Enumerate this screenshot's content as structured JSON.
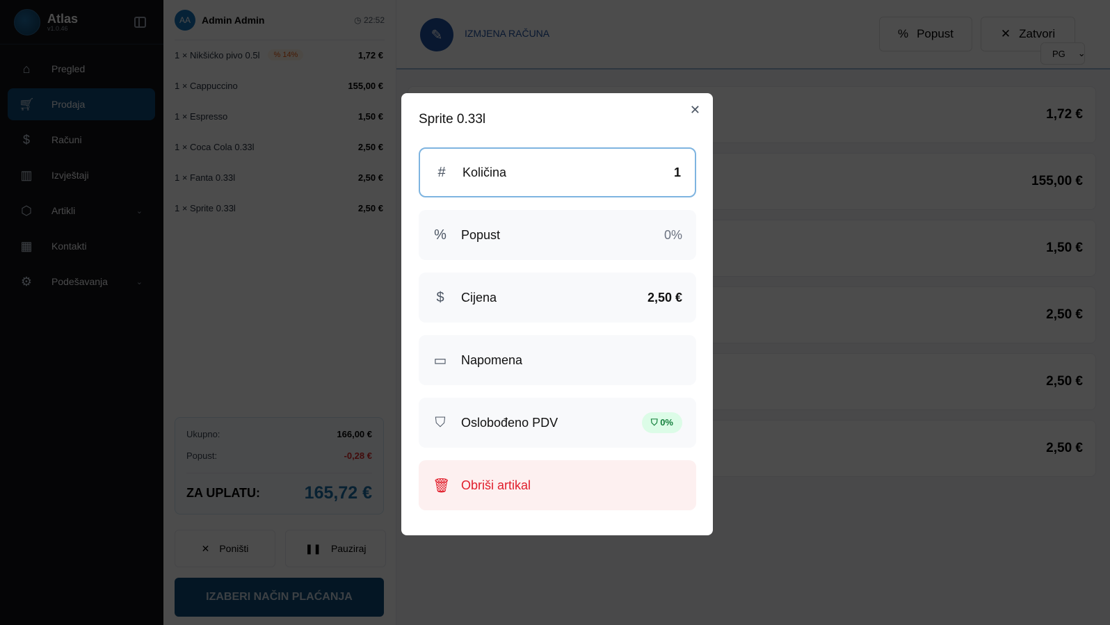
{
  "sidebar": {
    "app_name": "Atlas",
    "version": "v1.0.46",
    "items": [
      {
        "label": "Pregled",
        "icon": "home-icon"
      },
      {
        "label": "Prodaja",
        "icon": "cart-icon",
        "active": true
      },
      {
        "label": "Računi",
        "icon": "receipt-icon"
      },
      {
        "label": "Izvještaji",
        "icon": "chart-icon"
      },
      {
        "label": "Artikli",
        "icon": "box-icon",
        "expandable": true
      },
      {
        "label": "Kontakti",
        "icon": "building-icon"
      },
      {
        "label": "Podešavanja",
        "icon": "gear-icon",
        "expandable": true
      }
    ]
  },
  "order": {
    "user_initials": "AA",
    "user_name": "Admin Admin",
    "time": "22:52",
    "items": [
      {
        "text": "1 × Nikšićko pivo 0.5l",
        "badge": "% 14%",
        "price": "1,72 €"
      },
      {
        "text": "1 × Cappuccino",
        "price": "155,00 €"
      },
      {
        "text": "1 × Espresso",
        "price": "1,50 €"
      },
      {
        "text": "1 × Coca Cola 0.33l",
        "price": "2,50 €"
      },
      {
        "text": "1 × Fanta 0.33l",
        "price": "2,50 €"
      },
      {
        "text": "1 × Sprite 0.33l",
        "price": "2,50 €"
      }
    ],
    "total_label": "Ukupno:",
    "total": "166,00 €",
    "discount_label": "Popust:",
    "discount": "-0,28 €",
    "pay_label": "ZA UPLATU:",
    "pay": "165,72 €",
    "cancel": "Poništi",
    "pause": "Pauziraj",
    "choose_payment": "IZABERI NAČIN PLAĆANJA"
  },
  "main": {
    "title": "IZMJENA RAČUNA",
    "discount_btn": "Popust",
    "close_btn": "Zatvori",
    "lang": "PG",
    "card_prices": [
      "1,72 €",
      "155,00 €",
      "1,50 €",
      "2,50 €",
      "2,50 €",
      "2,50 €"
    ]
  },
  "modal": {
    "title": "Sprite 0.33l",
    "quantity_label": "Količina",
    "quantity": "1",
    "discount_label": "Popust",
    "discount": "0%",
    "price_label": "Cijena",
    "price": "2,50 €",
    "note_label": "Napomena",
    "vat_label": "Oslobođeno PDV",
    "vat_badge": "0%",
    "delete_label": "Obriši artikal"
  },
  "colors": {
    "accent": "#0d4a79",
    "danger": "#e11d2a",
    "success": "#15803d"
  }
}
